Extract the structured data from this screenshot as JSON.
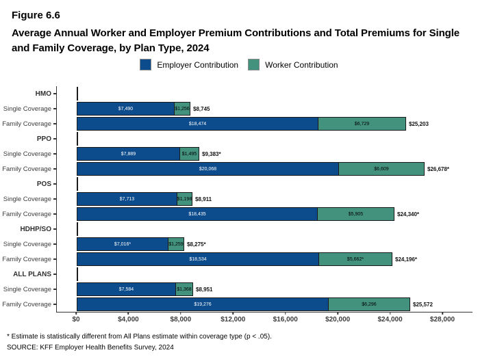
{
  "figure": {
    "label": "Figure 6.6"
  },
  "title": "Average Annual Worker and Employer Premium Contributions and Total Premiums for Single and Family Coverage, by Plan Type, 2024",
  "legend": [
    {
      "name": "Employer Contribution",
      "color": "#0d4c8c"
    },
    {
      "name": "Worker Contribution",
      "color": "#43927d"
    }
  ],
  "chart_data": {
    "type": "bar",
    "orientation": "horizontal",
    "stacked": true,
    "title": "Average Annual Worker and Employer Premium Contributions and Total Premiums for Single and Family Coverage, by Plan Type, 2024",
    "xlabel": "",
    "ylabel": "",
    "xlim": [
      0,
      28000
    ],
    "x_tick_values": [
      0,
      4000,
      8000,
      12000,
      16000,
      20000,
      24000,
      28000
    ],
    "x_tick_labels": [
      "$0",
      "$4,000",
      "$8,000",
      "$12,000",
      "$16,000",
      "$20,000",
      "$24,000",
      "$28,000"
    ],
    "series": [
      "Employer Contribution",
      "Worker Contribution"
    ],
    "colors": {
      "employer": "#0d4c8c",
      "worker": "#43927d"
    },
    "legend_position": "top",
    "grid": false,
    "groups": [
      {
        "plan": "HMO",
        "rows": [
          {
            "category": "Single Coverage",
            "employer": 7490,
            "worker": 1256,
            "total": 8745,
            "employer_label": "$7,490",
            "worker_label": "$1,256",
            "total_label": "$8,745"
          },
          {
            "category": "Family Coverage",
            "employer": 18474,
            "worker": 6729,
            "total": 25203,
            "employer_label": "$18,474",
            "worker_label": "$6,729",
            "total_label": "$25,203"
          }
        ]
      },
      {
        "plan": "PPO",
        "rows": [
          {
            "category": "Single Coverage",
            "employer": 7889,
            "worker": 1495,
            "total": 9383,
            "employer_label": "$7,889",
            "worker_label": "$1,495",
            "total_label": "$9,383*"
          },
          {
            "category": "Family Coverage",
            "employer": 20068,
            "worker": 6609,
            "total": 26678,
            "employer_label": "$20,068",
            "worker_label": "$6,609",
            "total_label": "$26,678*"
          }
        ]
      },
      {
        "plan": "POS",
        "rows": [
          {
            "category": "Single Coverage",
            "employer": 7713,
            "worker": 1198,
            "total": 8911,
            "employer_label": "$7,713",
            "worker_label": "$1,198",
            "total_label": "$8,911"
          },
          {
            "category": "Family Coverage",
            "employer": 18435,
            "worker": 5905,
            "total": 24340,
            "employer_label": "$18,435",
            "worker_label": "$5,905",
            "total_label": "$24,340*"
          }
        ]
      },
      {
        "plan": "HDHP/SO",
        "rows": [
          {
            "category": "Single Coverage",
            "employer": 7016,
            "worker": 1259,
            "total": 8275,
            "employer_label": "$7,016*",
            "worker_label": "$1,259",
            "total_label": "$8,275*"
          },
          {
            "category": "Family Coverage",
            "employer": 18534,
            "worker": 5662,
            "total": 24196,
            "employer_label": "$18,534",
            "worker_label": "$5,662*",
            "total_label": "$24,196*"
          }
        ]
      },
      {
        "plan": "ALL PLANS",
        "rows": [
          {
            "category": "Single Coverage",
            "employer": 7584,
            "worker": 1368,
            "total": 8951,
            "employer_label": "$7,584",
            "worker_label": "$1,368",
            "total_label": "$8,951"
          },
          {
            "category": "Family Coverage",
            "employer": 19276,
            "worker": 6296,
            "total": 25572,
            "employer_label": "$19,276",
            "worker_label": "$6,296",
            "total_label": "$25,572"
          }
        ]
      }
    ]
  },
  "footnote": "* Estimate is statistically different from All Plans estimate within coverage type (p < .05).",
  "source": "SOURCE: KFF Employer Health Benefits Survey, 2024"
}
